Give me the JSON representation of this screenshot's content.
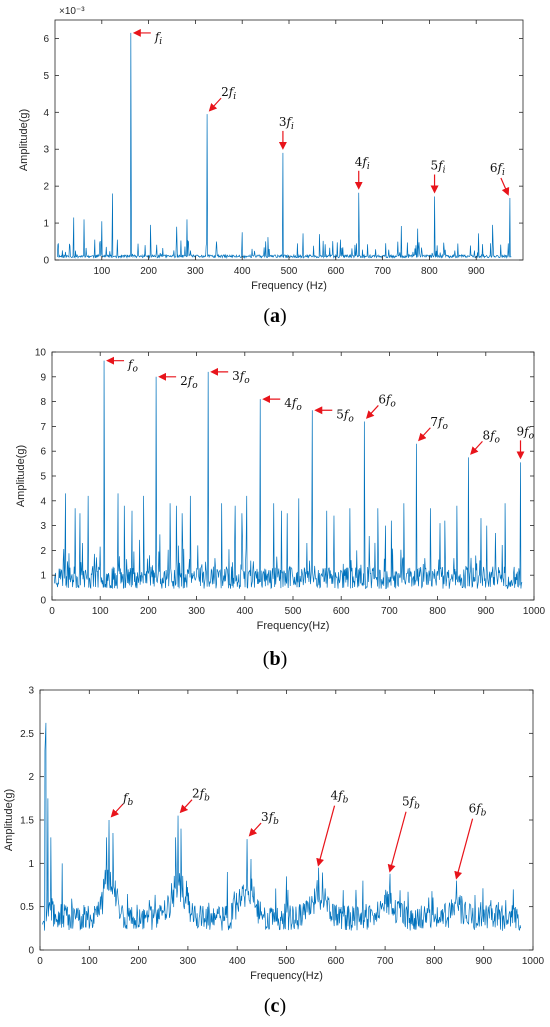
{
  "colors": {
    "line": "#0072BD",
    "arrow": "#E8141B",
    "axis": "#262626"
  },
  "chart_data": [
    {
      "id": "a",
      "type": "line",
      "panel_label": "(a)",
      "xlabel": "Frequency (Hz)",
      "ylabel": "Amplitude(g)",
      "y_exponent": "×10⁻³",
      "xlim": [
        0,
        1000
      ],
      "ylim": [
        0,
        6.5
      ],
      "xticks": [
        100,
        200,
        300,
        400,
        500,
        600,
        700,
        800,
        900
      ],
      "yticks": [
        0,
        1,
        2,
        3,
        4,
        5,
        6
      ],
      "grid": false,
      "noise": {
        "seed": 11,
        "base": 0.06,
        "amp": 0.08,
        "spike_prob": 0.1,
        "spike_amp": 0.45
      },
      "peaks": [
        [
          162,
          6.15
        ],
        [
          325,
          3.95
        ],
        [
          487,
          2.9
        ],
        [
          649,
          1.82
        ],
        [
          811,
          1.72
        ],
        [
          972,
          1.68
        ],
        [
          123,
          1.8
        ],
        [
          40,
          1.15
        ],
        [
          62,
          1.1
        ],
        [
          100,
          1.05
        ],
        [
          204,
          0.95
        ],
        [
          260,
          0.9
        ],
        [
          282,
          1.1
        ],
        [
          400,
          0.75
        ],
        [
          455,
          0.62
        ],
        [
          530,
          0.72
        ],
        [
          565,
          0.7
        ],
        [
          610,
          0.55
        ],
        [
          740,
          0.92
        ],
        [
          775,
          0.85
        ],
        [
          905,
          0.72
        ],
        [
          935,
          0.95
        ],
        [
          85,
          0.55
        ],
        [
          345,
          0.5
        ]
      ],
      "annotations": [
        {
          "label": "f",
          "sub": "i",
          "peak_x": 162,
          "peak_y": 6.15,
          "dir": "left"
        },
        {
          "label": "2f",
          "sub": "i",
          "peak_x": 325,
          "peak_y": 3.95,
          "dir": "downleft"
        },
        {
          "label": "3f",
          "sub": "i",
          "peak_x": 487,
          "peak_y": 2.9,
          "dir": "down"
        },
        {
          "label": "4f",
          "sub": "i",
          "peak_x": 649,
          "peak_y": 1.82,
          "dir": "down"
        },
        {
          "label": "5f",
          "sub": "i",
          "peak_x": 811,
          "peak_y": 1.72,
          "dir": "down"
        },
        {
          "label": "6f",
          "sub": "i",
          "peak_x": 972,
          "peak_y": 1.68,
          "dir": "downright"
        }
      ]
    },
    {
      "id": "b",
      "type": "line",
      "panel_label": "(b)",
      "xlabel": "Frequency(Hz)",
      "ylabel": "Amplitude(g)",
      "y_exponent": "",
      "xlim": [
        0,
        1000
      ],
      "ylim": [
        0,
        10
      ],
      "xticks": [
        0,
        100,
        200,
        300,
        400,
        500,
        600,
        700,
        800,
        900,
        1000
      ],
      "yticks": [
        0,
        1,
        2,
        3,
        4,
        5,
        6,
        7,
        8,
        9,
        10
      ],
      "grid": false,
      "noise": {
        "seed": 23,
        "base": 0.45,
        "amp": 0.9,
        "spike_prob": 0.12,
        "spike_amp": 1.4
      },
      "peaks": [
        [
          108,
          9.65
        ],
        [
          216,
          9.0
        ],
        [
          324,
          9.2
        ],
        [
          432,
          8.1
        ],
        [
          540,
          7.65
        ],
        [
          648,
          7.2
        ],
        [
          756,
          6.3
        ],
        [
          864,
          5.75
        ],
        [
          972,
          5.55
        ],
        [
          28,
          4.3
        ],
        [
          48,
          3.7
        ],
        [
          58,
          3.5
        ],
        [
          75,
          4.2
        ],
        [
          137,
          4.3
        ],
        [
          150,
          3.8
        ],
        [
          166,
          3.6
        ],
        [
          190,
          4.2
        ],
        [
          245,
          3.9
        ],
        [
          258,
          3.8
        ],
        [
          270,
          3.5
        ],
        [
          287,
          4.2
        ],
        [
          352,
          3.9
        ],
        [
          380,
          3.8
        ],
        [
          394,
          3.5
        ],
        [
          404,
          4.2
        ],
        [
          460,
          3.9
        ],
        [
          476,
          3.6
        ],
        [
          488,
          3.5
        ],
        [
          512,
          4.1
        ],
        [
          570,
          3.6
        ],
        [
          585,
          3.4
        ],
        [
          618,
          3.7
        ],
        [
          676,
          3.7
        ],
        [
          692,
          3.0
        ],
        [
          704,
          3.2
        ],
        [
          730,
          3.9
        ],
        [
          785,
          3.7
        ],
        [
          805,
          3.1
        ],
        [
          815,
          3.2
        ],
        [
          840,
          3.8
        ],
        [
          890,
          3.3
        ],
        [
          902,
          3.0
        ],
        [
          940,
          3.9
        ],
        [
          920,
          2.7
        ]
      ],
      "annotations": [
        {
          "label": "f",
          "sub": "o",
          "peak_x": 108,
          "peak_y": 9.65,
          "dir": "left"
        },
        {
          "label": "2f",
          "sub": "o",
          "peak_x": 216,
          "peak_y": 9.0,
          "dir": "left"
        },
        {
          "label": "3f",
          "sub": "o",
          "peak_x": 324,
          "peak_y": 9.2,
          "dir": "left"
        },
        {
          "label": "4f",
          "sub": "o",
          "peak_x": 432,
          "peak_y": 8.1,
          "dir": "left"
        },
        {
          "label": "5f",
          "sub": "o",
          "peak_x": 540,
          "peak_y": 7.65,
          "dir": "left"
        },
        {
          "label": "6f",
          "sub": "o",
          "peak_x": 648,
          "peak_y": 7.2,
          "dir": "downleft"
        },
        {
          "label": "7f",
          "sub": "o",
          "peak_x": 756,
          "peak_y": 6.3,
          "dir": "downleft"
        },
        {
          "label": "8f",
          "sub": "o",
          "peak_x": 864,
          "peak_y": 5.75,
          "dir": "downleft"
        },
        {
          "label": "9f",
          "sub": "o",
          "peak_x": 972,
          "peak_y": 5.55,
          "dir": "down"
        }
      ]
    },
    {
      "id": "c",
      "type": "line",
      "panel_label": "(c)",
      "xlabel": "Frequency(Hz)",
      "ylabel": "Amplitude(g)",
      "y_exponent": "",
      "xlim": [
        0,
        1000
      ],
      "ylim": [
        0,
        3
      ],
      "xticks": [
        0,
        100,
        200,
        300,
        400,
        500,
        600,
        700,
        800,
        900,
        1000
      ],
      "yticks": [
        0,
        0.5,
        1,
        1.5,
        2,
        2.5,
        3
      ],
      "grid": false,
      "noise": {
        "seed": 37,
        "base": 0.22,
        "amp": 0.3,
        "spike_prob": 0.14,
        "spike_amp": 0.2
      },
      "bumps": [
        [
          140,
          0.45,
          18
        ],
        [
          280,
          0.35,
          20
        ],
        [
          420,
          0.28,
          20
        ],
        [
          565,
          0.22,
          22
        ],
        [
          710,
          0.15,
          20
        ],
        [
          845,
          0.1,
          20
        ]
      ],
      "peaks": [
        [
          12,
          2.62
        ],
        [
          10,
          2.3
        ],
        [
          16,
          1.75
        ],
        [
          22,
          1.3
        ],
        [
          140,
          1.5
        ],
        [
          148,
          1.35
        ],
        [
          135,
          1.3
        ],
        [
          280,
          1.55
        ],
        [
          286,
          1.4
        ],
        [
          275,
          1.3
        ],
        [
          420,
          1.28
        ],
        [
          428,
          1.05
        ],
        [
          565,
          0.95
        ],
        [
          710,
          0.88
        ],
        [
          845,
          0.8
        ],
        [
          45,
          1.0
        ],
        [
          380,
          0.9
        ],
        [
          500,
          0.85
        ],
        [
          655,
          0.8
        ],
        [
          960,
          0.7
        ]
      ],
      "annotations": [
        {
          "label": "f",
          "sub": "b",
          "peak_x": 140,
          "peak_y": 1.5,
          "dir": "downleft"
        },
        {
          "label": "2f",
          "sub": "b",
          "peak_x": 280,
          "peak_y": 1.55,
          "dir": "downleft"
        },
        {
          "label": "3f",
          "sub": "b",
          "peak_x": 420,
          "peak_y": 1.28,
          "dir": "downleft"
        },
        {
          "label": "4f",
          "sub": "b",
          "peak_x": 565,
          "peak_y": 0.95,
          "dir": "longdown"
        },
        {
          "label": "5f",
          "sub": "b",
          "peak_x": 710,
          "peak_y": 0.88,
          "dir": "longdown"
        },
        {
          "label": "6f",
          "sub": "b",
          "peak_x": 845,
          "peak_y": 0.8,
          "dir": "longdown"
        }
      ]
    }
  ]
}
